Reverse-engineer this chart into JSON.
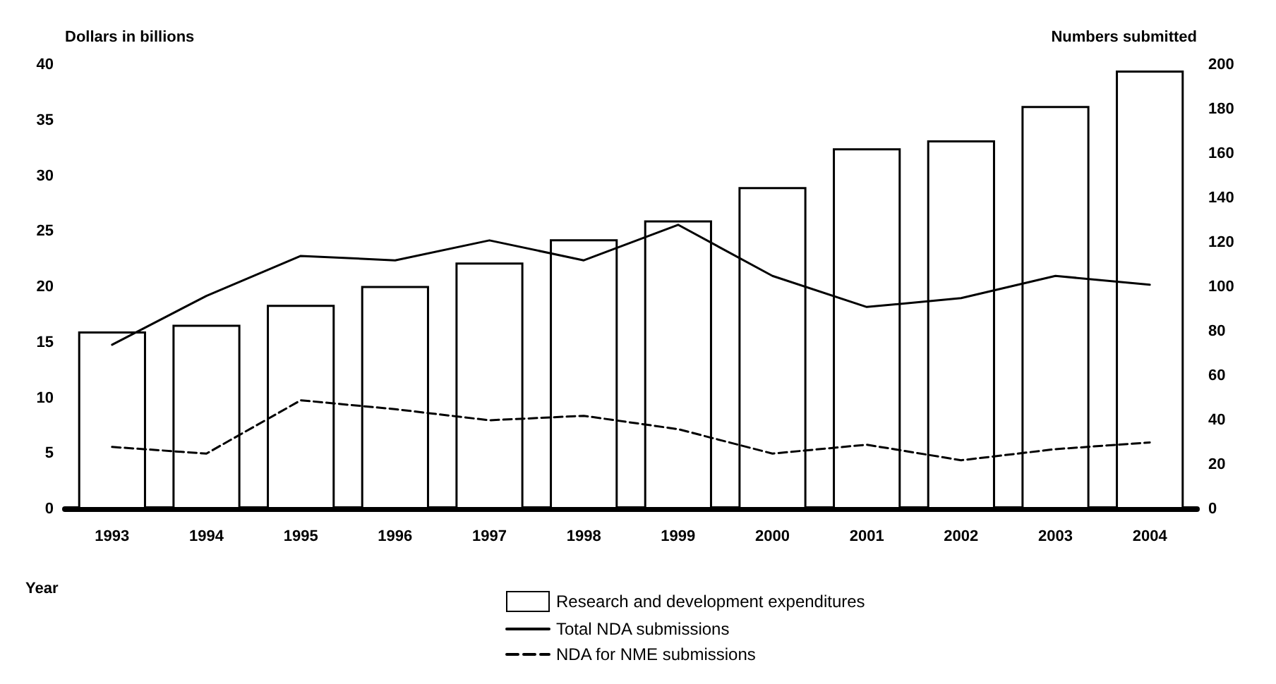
{
  "chart_data": {
    "type": "bar",
    "xlabel": "Year",
    "ylabel": "Dollars in billions",
    "y2label": "Numbers submitted",
    "categories": [
      "1993",
      "1994",
      "1995",
      "1996",
      "1997",
      "1998",
      "1999",
      "2000",
      "2001",
      "2002",
      "2003",
      "2004"
    ],
    "series": [
      {
        "name": "Research and development expenditures",
        "color": "#ffffff",
        "values": [
          16.0,
          16.6,
          18.4,
          20.1,
          22.2,
          24.3,
          26.0,
          29.0,
          32.5,
          33.2,
          36.3,
          39.5
        ]
      },
      {
        "name": "Total NDA submissions",
        "type": "line",
        "axis": "y2",
        "color": "#000000",
        "line_style": "solid",
        "values": [
          74,
          96,
          114,
          112,
          121,
          112,
          128,
          105,
          91,
          95,
          105,
          101
        ]
      },
      {
        "name": "NDA for NME submissions",
        "type": "line",
        "axis": "y2",
        "color": "#000000",
        "line_style": "dashed",
        "values": [
          28,
          25,
          49,
          45,
          40,
          42,
          36,
          25,
          29,
          22,
          27,
          30
        ]
      }
    ],
    "ylim": [
      0,
      40
    ],
    "yticks": [
      0,
      5,
      10,
      15,
      20,
      25,
      30,
      35,
      40
    ],
    "y2lim": [
      0,
      200
    ],
    "y2ticks": [
      0,
      20,
      40,
      60,
      80,
      100,
      120,
      140,
      160,
      180,
      200
    ],
    "grid": false,
    "legend": "bottom",
    "marker": "none"
  }
}
